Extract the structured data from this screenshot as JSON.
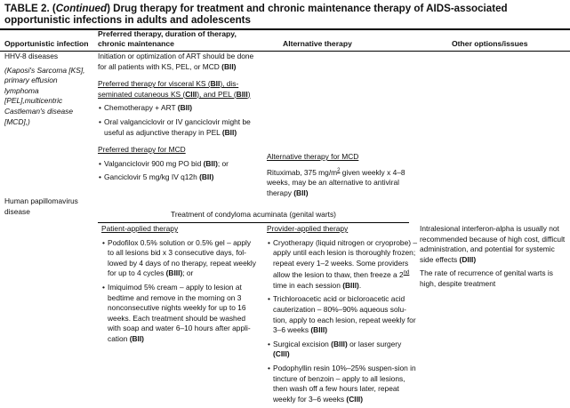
{
  "title": [
    [
      "TABLE 2. (",
      "b"
    ],
    [
      "Continued",
      "bi"
    ],
    [
      ") Drug therapy for treatment and chronic maintenance therapy of AIDS-associated opportunistic infections in adults and adolescents",
      "b"
    ]
  ],
  "headers": {
    "col1": "Opportunistic infection",
    "col2": "Preferred therapy, duration of therapy, chronic maintenance",
    "col3": "Alternative therapy",
    "col4": "Other options/issues"
  },
  "hhv8": {
    "name": "HHV-8 diseases",
    "detail": "(Kaposi's Sarcoma [KS], primary effusion lymphoma [PEL],multicentric Castleman's disease [MCD],)",
    "preferred": [
      {
        "type": "p",
        "parts": [
          [
            "Initiation or optimization of ART should be done for all patients with KS, PEL, or MCD ",
            ""
          ],
          [
            "(BII)",
            "b"
          ]
        ]
      },
      {
        "type": "h",
        "parts": [
          [
            "Preferred therapy for visceral KS (",
            "u"
          ],
          [
            "BII",
            "ub"
          ],
          [
            "),  dis-seminated cutaneous KS (",
            "u"
          ],
          [
            "CIII",
            "ub"
          ],
          [
            "), and PEL (",
            "u"
          ],
          [
            "BIII",
            "ub"
          ],
          [
            ")",
            "u"
          ]
        ]
      },
      {
        "type": "li",
        "parts": [
          [
            "Chemotherapy + ART ",
            ""
          ],
          [
            "(BII)",
            "b"
          ]
        ]
      },
      {
        "type": "li",
        "parts": [
          [
            "Oral valganciclovir or IV ganciclovir might be useful as adjunctive therapy in PEL ",
            ""
          ],
          [
            "(BII)",
            "b"
          ]
        ]
      },
      {
        "type": "h",
        "parts": [
          [
            "Preferred therapy for MCD",
            "u"
          ]
        ]
      },
      {
        "type": "li",
        "parts": [
          [
            "Valganciclovir 900 mg PO bid ",
            ""
          ],
          [
            "(BII)",
            "b"
          ],
          [
            "; or",
            ""
          ]
        ]
      },
      {
        "type": "li",
        "parts": [
          [
            "Ganciclovir 5 mg/kg IV q12h ",
            ""
          ],
          [
            "(BII)",
            "b"
          ]
        ]
      }
    ],
    "alternative": [
      {
        "type": "h",
        "parts": [
          [
            "Alternative therapy for MCD",
            "u"
          ]
        ]
      },
      {
        "type": "p",
        "parts": [
          [
            "Rituximab, 375 mg/m",
            ""
          ],
          [
            "2",
            "sup"
          ],
          [
            " given weekly x 4–8 weeks, may be an alternative to antiviral therapy ",
            ""
          ],
          [
            "(BII)",
            "b"
          ]
        ]
      }
    ]
  },
  "hpv": {
    "name": "Human papillomavirus disease",
    "span_heading": "Treatment of condyloma acuminata (genital warts)",
    "patient": [
      {
        "type": "h",
        "parts": [
          [
            "Patient-applied therapy",
            "u"
          ]
        ]
      },
      {
        "type": "li",
        "parts": [
          [
            "Podofilox 0.5% solution or 0.5% gel – apply to all lesions bid x 3 consecutive days, fol-lowed by 4 days of no therapy, repeat weekly for up to 4 cycles ",
            ""
          ],
          [
            "(BIII)",
            "b"
          ],
          [
            "; or",
            ""
          ]
        ]
      },
      {
        "type": "li",
        "parts": [
          [
            "Imiquimod 5% cream – apply to lesion at bedtime and remove in the morning on 3 nonconsecutive nights weekly for up to 16 weeks. Each treatment should be washed with soap and water 6–10 hours after appli-cation ",
            ""
          ],
          [
            "(BII)",
            "b"
          ]
        ]
      }
    ],
    "provider": [
      {
        "type": "h",
        "parts": [
          [
            "Provider-applied therapy",
            "u"
          ]
        ]
      },
      {
        "type": "li",
        "parts": [
          [
            "Cryotherapy (liquid nitrogen or cryoprobe) – apply until each lesion is thoroughly frozen; repeat every 1–2 weeks. Some providers allow the lesion to thaw, then freeze a 2",
            ""
          ],
          [
            "nd",
            "sup"
          ],
          [
            " time in each session ",
            ""
          ],
          [
            "(BIII)",
            "b"
          ],
          [
            ".",
            ""
          ]
        ]
      },
      {
        "type": "li",
        "parts": [
          [
            "Trichloroacetic acid or bicloroacetic acid cauterization – 80%–90% aqueous solu-tion, apply to each lesion, repeat weekly for 3–6 weeks ",
            ""
          ],
          [
            "(BIII)",
            "b"
          ]
        ]
      },
      {
        "type": "li",
        "parts": [
          [
            "Surgical excision ",
            ""
          ],
          [
            "(BIII)",
            "b"
          ],
          [
            " or laser surgery ",
            ""
          ],
          [
            "(CIII)",
            "b"
          ]
        ]
      },
      {
        "type": "li",
        "parts": [
          [
            "Podophyllin resin 10%–25% suspen-sion in tincture of benzoin – apply to all lesions, then wash off a few hours later, repeat weekly for 3–6 weeks ",
            ""
          ],
          [
            "(CIII)",
            "b"
          ]
        ]
      }
    ],
    "other": [
      {
        "type": "p",
        "parts": [
          [
            "Intralesional interferon-alpha is usually not recommended because of high cost, difficult administration, and potential for systemic side effects ",
            ""
          ],
          [
            "(DIII)",
            "b"
          ]
        ]
      },
      {
        "type": "p",
        "parts": [
          [
            "The rate of recurrence of genital warts is high, despite treatment",
            ""
          ]
        ]
      }
    ]
  }
}
